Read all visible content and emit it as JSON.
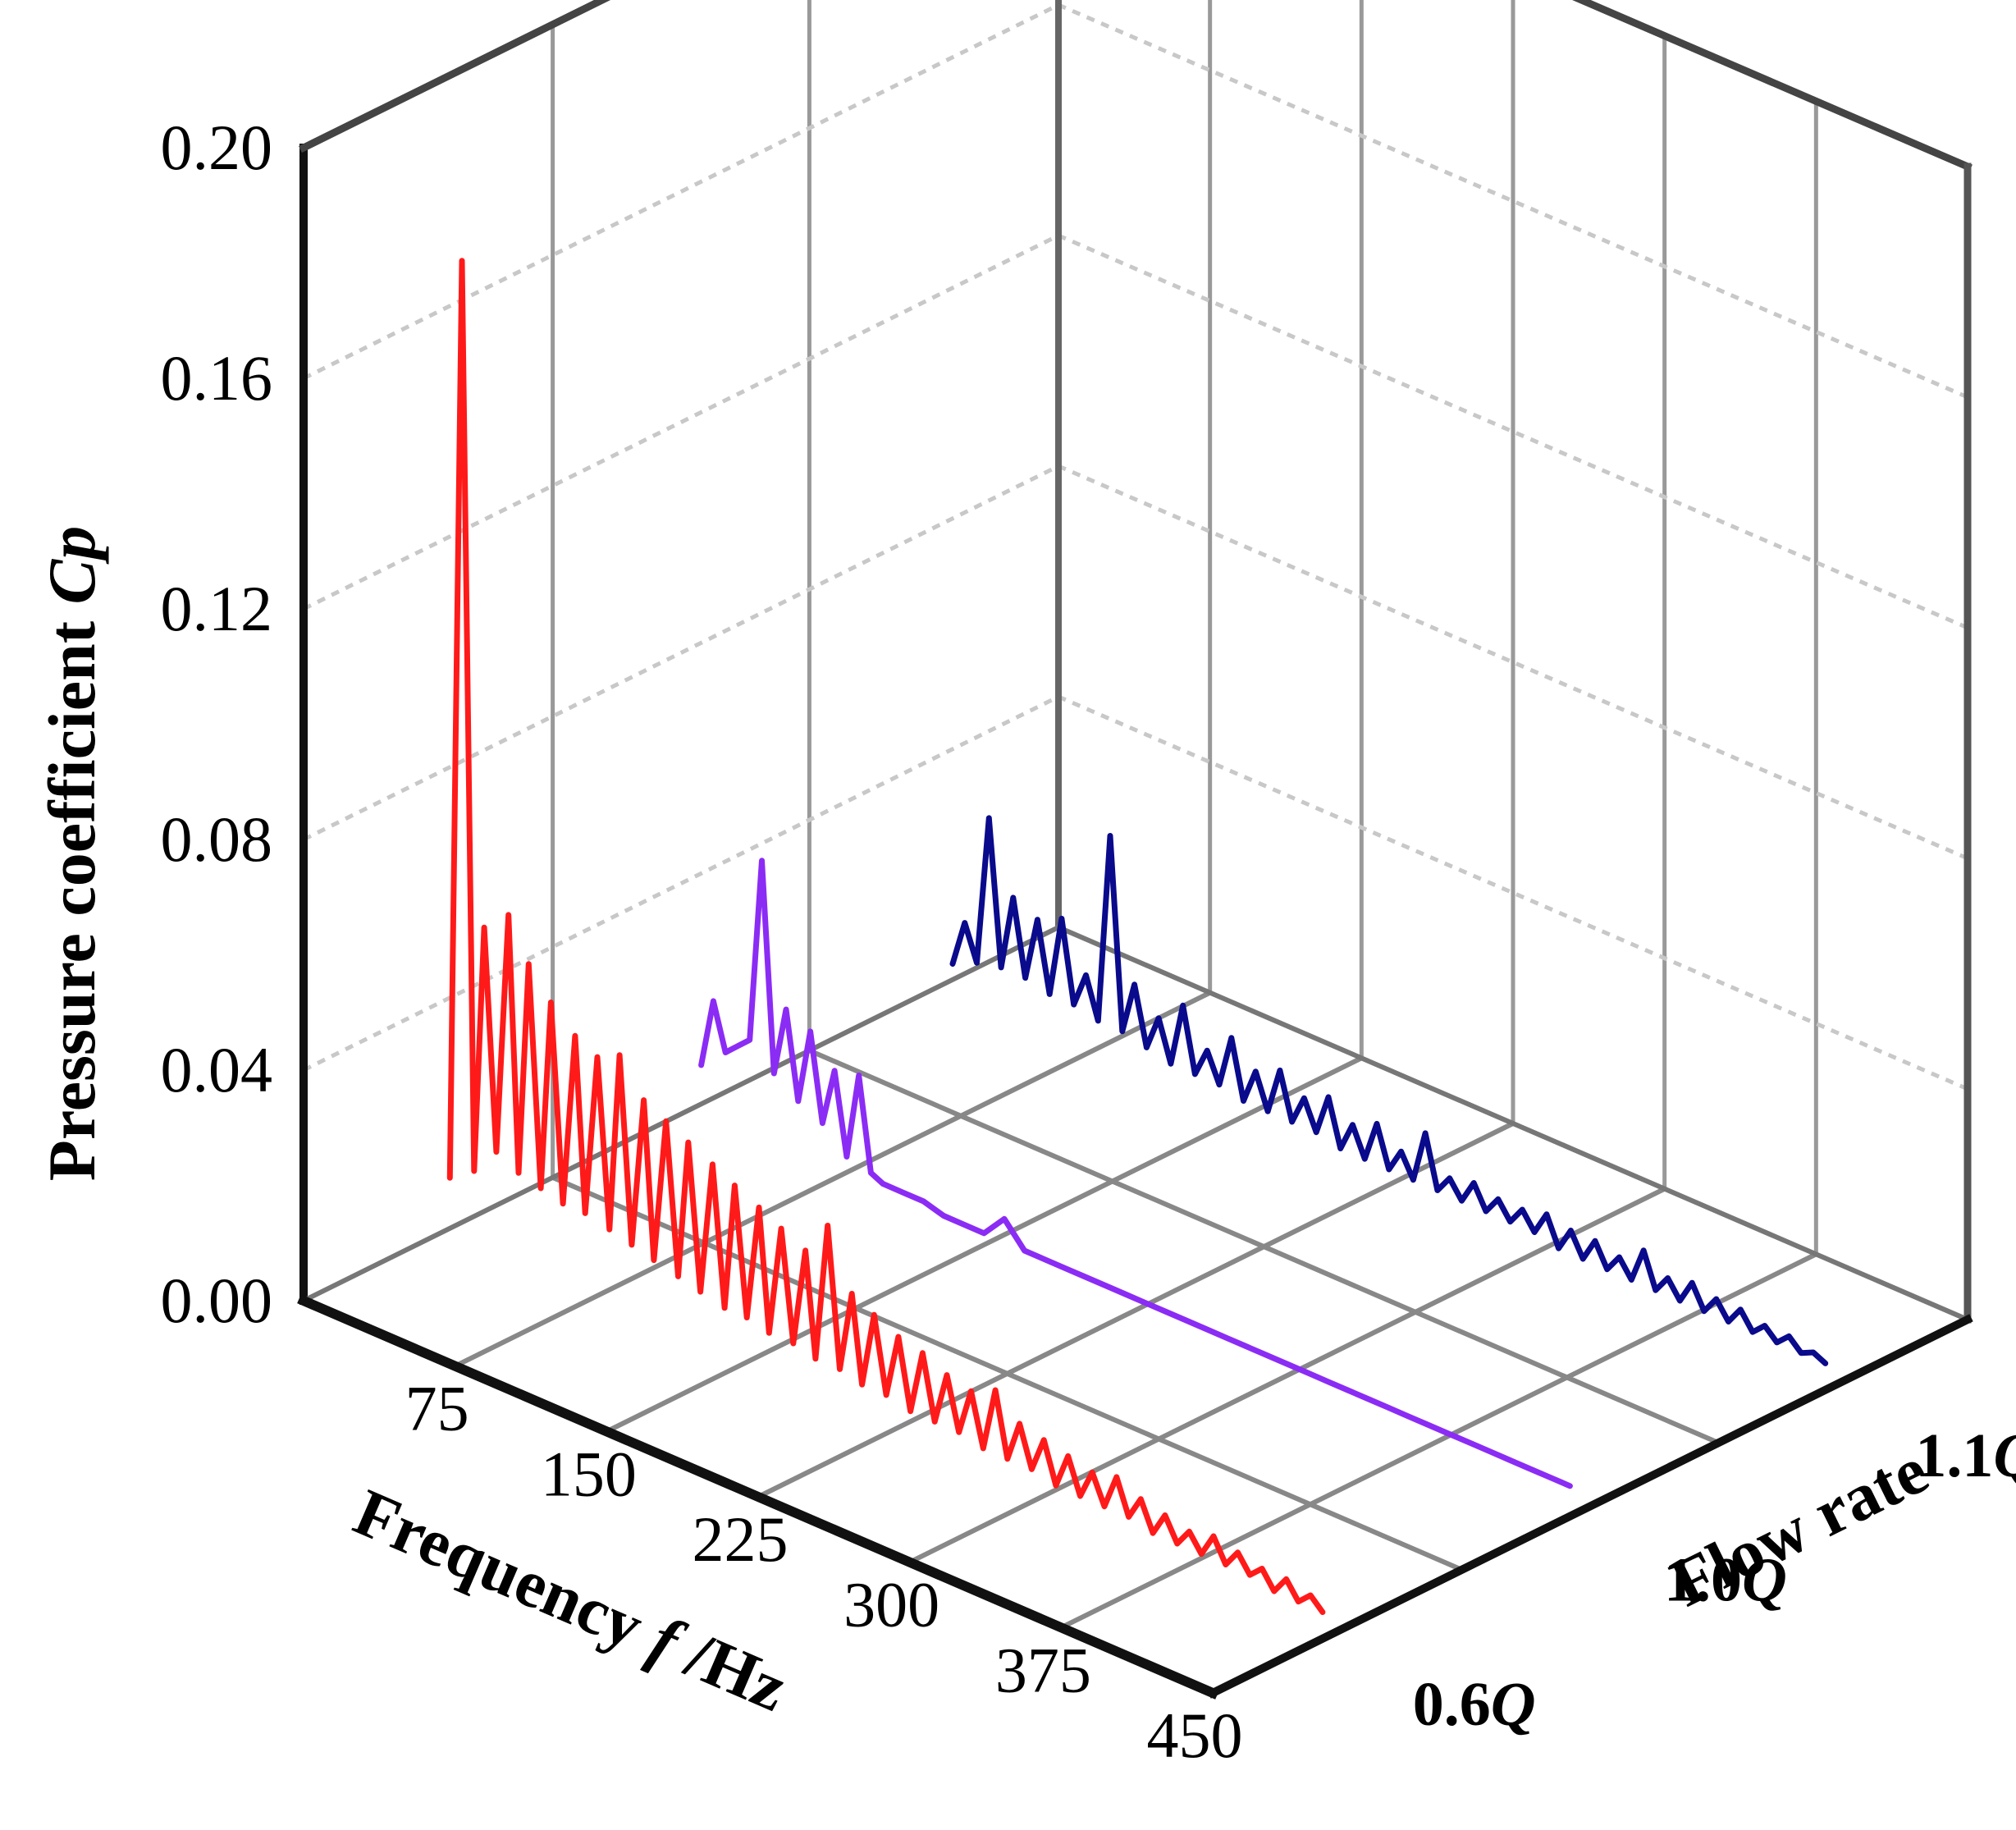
{
  "chart_data": {
    "type": "line",
    "title": "",
    "zlabel": {
      "main": "Pressure coefficient ",
      "italic": "Cp"
    },
    "xlabel": {
      "main": "Frequency ",
      "italic": "f",
      "unit": " /Hz"
    },
    "ylabel": "Flow rate",
    "z_ticks": [
      "0.20",
      "0.16",
      "0.12",
      "0.08",
      "0.04",
      "0.00"
    ],
    "x_ticks": [
      "75",
      "150",
      "225",
      "300",
      "375",
      "450"
    ],
    "zlim": [
      0,
      0.2
    ],
    "xlim": [
      0,
      450
    ],
    "series": [
      {
        "name": "0.6",
        "color": "#ff1a1a"
      },
      {
        "name": "1.0",
        "color": "#8b2cf5"
      },
      {
        "name": "1.1",
        "color": "#0a0a8c"
      }
    ],
    "series_values": {
      "0.6": {
        "f": [
          10,
          16,
          22,
          27,
          33,
          39,
          44,
          49,
          55,
          60,
          66,
          72,
          77,
          83,
          89,
          94,
          100,
          106,
          111,
          117,
          123,
          128,
          134,
          140,
          146,
          151,
          157,
          163,
          168,
          174,
          180,
          186,
          191,
          197,
          203,
          209,
          214,
          220,
          226,
          232,
          238,
          244,
          250,
          256,
          262,
          268,
          274,
          280,
          286,
          292,
          298,
          304,
          310,
          316,
          322,
          328,
          334,
          340,
          346,
          352,
          358,
          364,
          370,
          376,
          382,
          388,
          394,
          400,
          406,
          412,
          418,
          424,
          430,
          436,
          442
        ],
        "cp": [
          0.012,
          0.172,
          0.015,
          0.058,
          0.02,
          0.062,
          0.018,
          0.055,
          0.017,
          0.05,
          0.016,
          0.046,
          0.016,
          0.044,
          0.015,
          0.046,
          0.014,
          0.04,
          0.013,
          0.038,
          0.012,
          0.036,
          0.011,
          0.034,
          0.01,
          0.032,
          0.01,
          0.03,
          0.009,
          0.028,
          0.009,
          0.026,
          0.008,
          0.032,
          0.008,
          0.022,
          0.007,
          0.02,
          0.007,
          0.018,
          0.006,
          0.017,
          0.006,
          0.015,
          0.006,
          0.014,
          0.005,
          0.016,
          0.005,
          0.012,
          0.005,
          0.011,
          0.004,
          0.01,
          0.004,
          0.009,
          0.004,
          0.01,
          0.004,
          0.008,
          0.003,
          0.007,
          0.003,
          0.006,
          0.003,
          0.007,
          0.003,
          0.006,
          0.003,
          0.005,
          0.002,
          0.005,
          0.002,
          0.004,
          0.002
        ]
      },
      "1.0": {
        "f": [
          10,
          16,
          22,
          28,
          34,
          40,
          46,
          52,
          58,
          64,
          70,
          76,
          82,
          88,
          94,
          100,
          110,
          120,
          130,
          140,
          150,
          160,
          170,
          180,
          190,
          200,
          210,
          220,
          230,
          240,
          250,
          260,
          270,
          280,
          290,
          300,
          310,
          320,
          330,
          340,
          350,
          360,
          370,
          380,
          390,
          400,
          410,
          420,
          430,
          440
        ],
        "cp": [
          0.01,
          0.022,
          0.014,
          0.016,
          0.018,
          0.05,
          0.014,
          0.026,
          0.011,
          0.024,
          0.009,
          0.019,
          0.005,
          0.02,
          0.004,
          0.003,
          0.003,
          0.003,
          0.002,
          0.002,
          0.002,
          0.006,
          0.002,
          0.002,
          0.002,
          0.002,
          0.002,
          0.002,
          0.002,
          0.002,
          0.002,
          0.002,
          0.002,
          0.002,
          0.002,
          0.002,
          0.002,
          0.002,
          0.002,
          0.002,
          0.002,
          0.002,
          0.002,
          0.002,
          0.002,
          0.002,
          0.002,
          0.002,
          0.002,
          0.002
        ]
      },
      "1.1": {
        "f": [
          10,
          16,
          22,
          28,
          34,
          40,
          46,
          52,
          58,
          64,
          70,
          76,
          82,
          88,
          94,
          100,
          106,
          112,
          118,
          124,
          130,
          136,
          142,
          148,
          154,
          160,
          166,
          172,
          178,
          184,
          190,
          196,
          202,
          208,
          214,
          220,
          226,
          232,
          238,
          244,
          250,
          256,
          262,
          268,
          274,
          280,
          286,
          292,
          298,
          304,
          310,
          316,
          322,
          328,
          334,
          340,
          346,
          352,
          358,
          364,
          370,
          376,
          382,
          388,
          394,
          400,
          406,
          412,
          418,
          424,
          430,
          436,
          442
        ],
        "cp": [
          0.006,
          0.014,
          0.008,
          0.034,
          0.009,
          0.022,
          0.009,
          0.02,
          0.008,
          0.022,
          0.008,
          0.014,
          0.007,
          0.04,
          0.007,
          0.016,
          0.006,
          0.012,
          0.005,
          0.016,
          0.005,
          0.01,
          0.005,
          0.014,
          0.004,
          0.01,
          0.004,
          0.012,
          0.004,
          0.009,
          0.004,
          0.011,
          0.003,
          0.008,
          0.003,
          0.01,
          0.003,
          0.007,
          0.003,
          0.012,
          0.003,
          0.006,
          0.003,
          0.007,
          0.003,
          0.006,
          0.003,
          0.006,
          0.003,
          0.007,
          0.002,
          0.006,
          0.002,
          0.006,
          0.002,
          0.005,
          0.002,
          0.008,
          0.002,
          0.005,
          0.002,
          0.006,
          0.002,
          0.005,
          0.002,
          0.005,
          0.002,
          0.004,
          0.002,
          0.004,
          0.002,
          0.003,
          0.002
        ]
      }
    },
    "flow_ticks": [
      {
        "num": "0.6",
        "italic": "Q"
      },
      {
        "num": "1.0",
        "italic": "Q"
      },
      {
        "num": "1.1",
        "italic": "Q"
      }
    ],
    "grid": true
  }
}
